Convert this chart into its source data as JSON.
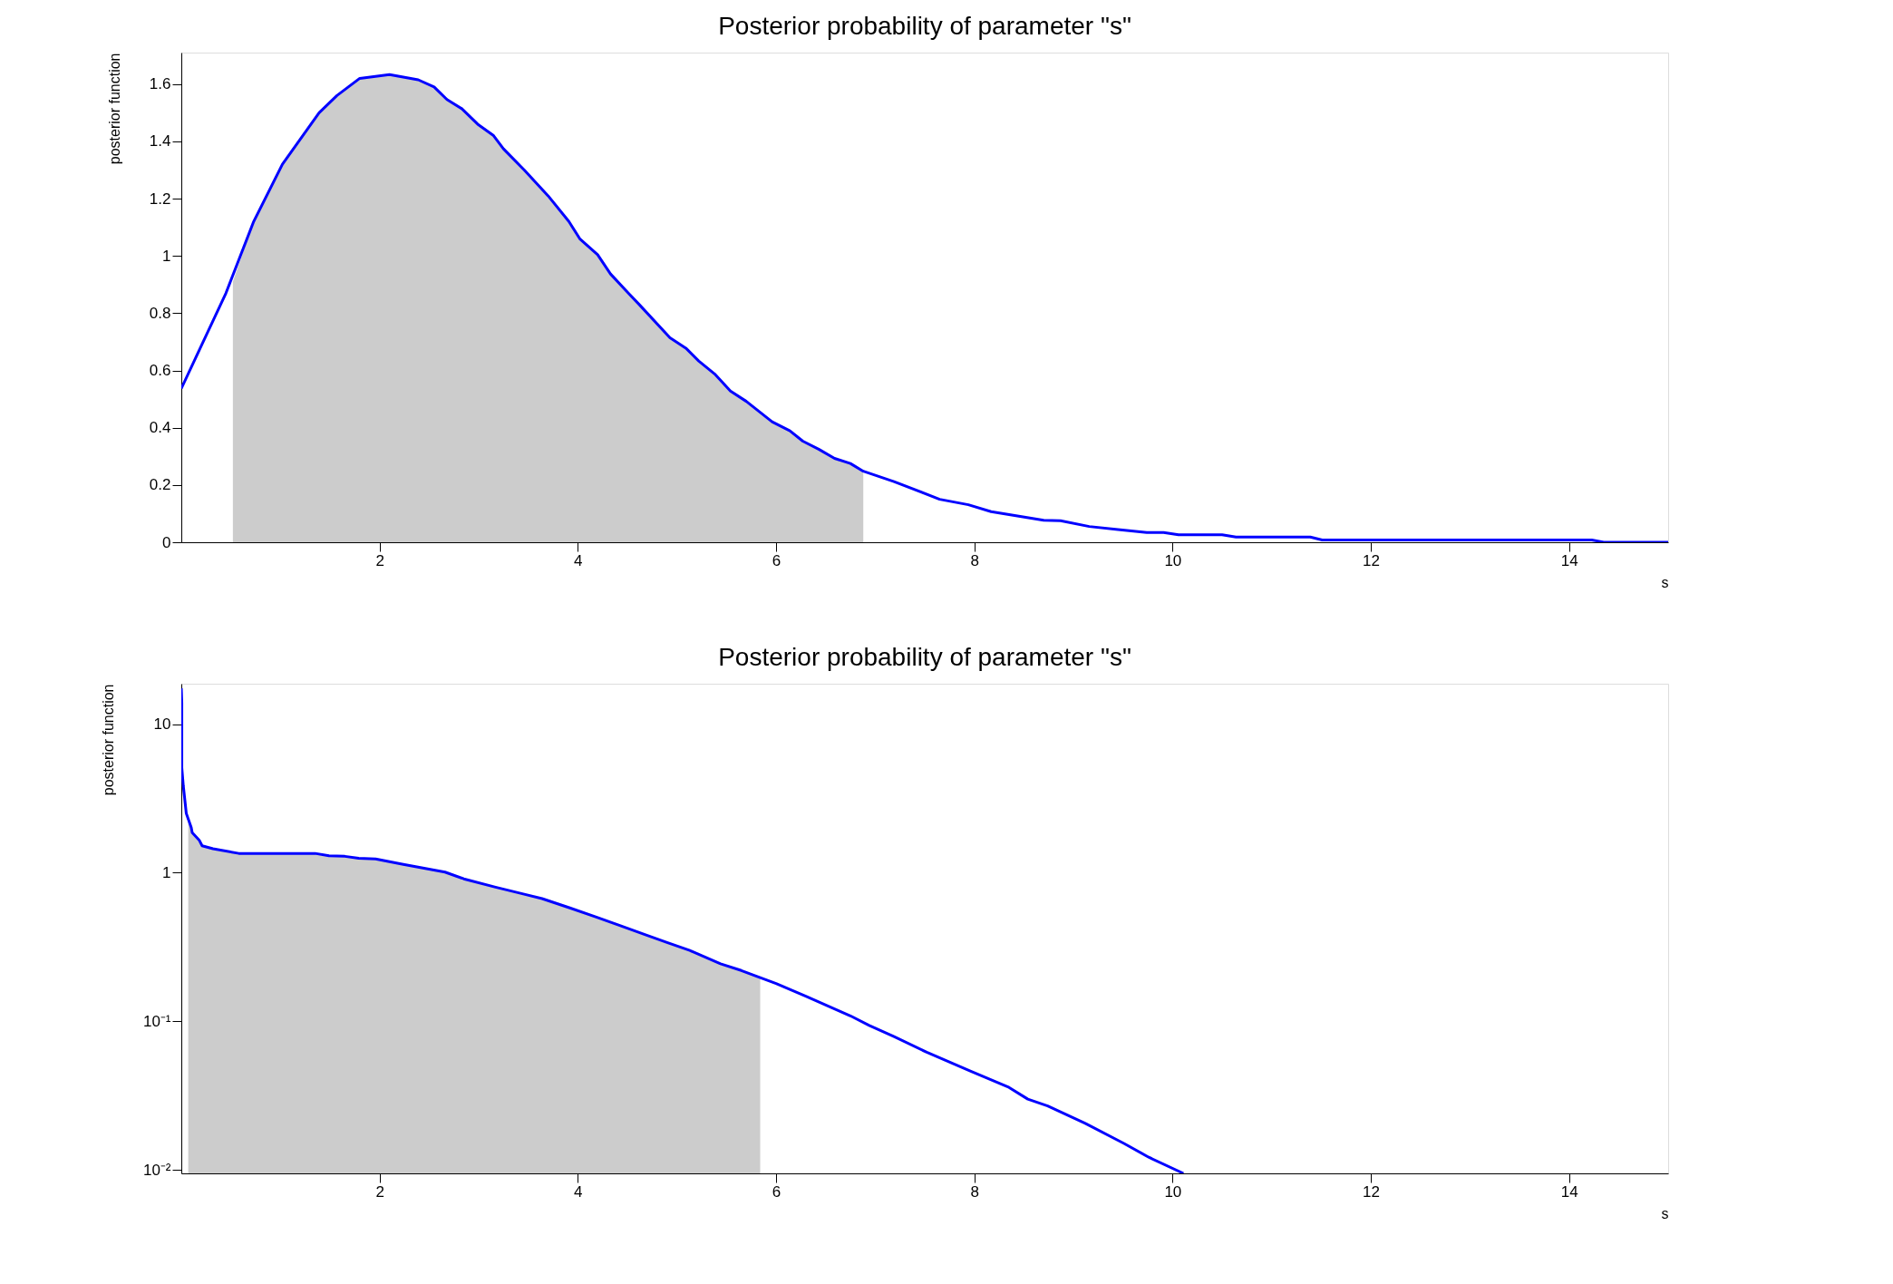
{
  "chart_data": [
    {
      "type": "line",
      "title": "Posterior probability of parameter \"s\"",
      "xlabel": "s",
      "ylabel": "posterior function",
      "xlim": [
        0,
        15
      ],
      "ylim": [
        0,
        1.71
      ],
      "xticks": [
        2,
        4,
        6,
        8,
        10,
        12,
        14
      ],
      "yticks": [
        0,
        0.2,
        0.4,
        0.6,
        0.8,
        1,
        1.2,
        1.4,
        1.6
      ],
      "series": [
        {
          "type": "area",
          "color": "#cccccc",
          "x": [
            0.52,
            0.73,
            1.02,
            1.39,
            1.57,
            1.8,
            2.1,
            2.39,
            2.55,
            2.68,
            2.83,
            2.99,
            3.15,
            3.25,
            3.46,
            3.7,
            3.91,
            4.02,
            4.2,
            4.33,
            4.51,
            4.62,
            4.93,
            5.09,
            5.22,
            5.38,
            5.54,
            5.7,
            5.96,
            6.14,
            6.27,
            6.43,
            6.59,
            6.75,
            6.88
          ],
          "values": [
            0.91,
            1.12,
            1.32,
            1.5,
            1.56,
            1.62,
            1.633,
            1.615,
            1.59,
            1.546,
            1.514,
            1.46,
            1.42,
            1.374,
            1.3,
            1.21,
            1.12,
            1.06,
            1.004,
            0.937,
            0.87,
            0.83,
            0.714,
            0.678,
            0.633,
            0.588,
            0.528,
            0.492,
            0.421,
            0.389,
            0.353,
            0.325,
            0.293,
            0.275,
            0.248
          ]
        },
        {
          "color": "#0000ff",
          "x": [
            0,
            0.18,
            0.45,
            0.73,
            1.02,
            1.39,
            1.57,
            1.8,
            2.1,
            2.39,
            2.55,
            2.68,
            2.83,
            2.99,
            3.15,
            3.25,
            3.46,
            3.7,
            3.91,
            4.02,
            4.2,
            4.33,
            4.51,
            4.62,
            4.93,
            5.09,
            5.22,
            5.38,
            5.54,
            5.7,
            5.96,
            6.14,
            6.27,
            6.43,
            6.59,
            6.75,
            6.88,
            7.19,
            7.65,
            7.94,
            8.17,
            8.7,
            8.87,
            9.16,
            9.45,
            9.74,
            9.91,
            10.06,
            10.5,
            10.64,
            11.39,
            11.51,
            14.23,
            14.35,
            15
          ],
          "values": [
            0.537,
            0.67,
            0.87,
            1.12,
            1.32,
            1.5,
            1.56,
            1.62,
            1.633,
            1.615,
            1.59,
            1.546,
            1.514,
            1.46,
            1.42,
            1.374,
            1.3,
            1.21,
            1.12,
            1.06,
            1.004,
            0.937,
            0.87,
            0.83,
            0.714,
            0.678,
            0.633,
            0.588,
            0.528,
            0.492,
            0.421,
            0.389,
            0.353,
            0.325,
            0.293,
            0.275,
            0.248,
            0.212,
            0.15,
            0.131,
            0.107,
            0.077,
            0.075,
            0.055,
            0.044,
            0.034,
            0.034,
            0.026,
            0.026,
            0.018,
            0.018,
            0.008,
            0.008,
            0,
            0
          ]
        }
      ]
    },
    {
      "type": "line",
      "title": "Posterior probability of parameter \"s\"",
      "xlabel": "s",
      "ylabel": "posterior function",
      "log": true,
      "xlim": [
        0,
        15
      ],
      "ylim": [
        0.0095,
        18.7
      ],
      "xticks": [
        2,
        4,
        6,
        8,
        10,
        12,
        14
      ],
      "yticks": [
        {
          "value": 0.01,
          "label": "10⁻²"
        },
        {
          "value": 0.1,
          "label": "10⁻¹"
        },
        1,
        10
      ],
      "series": [
        {
          "type": "area",
          "color": "#cccccc",
          "x": [
            0.07,
            0.1,
            0.11,
            0.18,
            0.21,
            0.32,
            0.58,
            1.35,
            1.49,
            1.65,
            1.79,
            1.96,
            2.24,
            2.66,
            2.85,
            3.17,
            3.45,
            3.64,
            3.92,
            4.2,
            4.43,
            4.67,
            4.9,
            5.13,
            5.44,
            5.65,
            5.84
          ],
          "values": [
            2.2,
            2.02,
            1.86,
            1.66,
            1.52,
            1.45,
            1.35,
            1.35,
            1.3,
            1.29,
            1.25,
            1.24,
            1.14,
            1.01,
            0.91,
            0.8,
            0.72,
            0.67,
            0.58,
            0.5,
            0.44,
            0.385,
            0.34,
            0.3,
            0.244,
            0.22,
            0.197
          ]
        },
        {
          "color": "#0000ff",
          "x": [
            0,
            0.005,
            0.005,
            0.02,
            0.05,
            0.1,
            0.11,
            0.18,
            0.21,
            0.32,
            0.58,
            1.35,
            1.49,
            1.65,
            1.79,
            1.96,
            2.24,
            2.66,
            2.85,
            3.17,
            3.45,
            3.64,
            3.92,
            4.2,
            4.43,
            4.67,
            4.9,
            5.13,
            5.44,
            5.65,
            5.84,
            6.0,
            6.3,
            6.75,
            6.94,
            7.19,
            7.52,
            7.97,
            8.35,
            8.54,
            8.74,
            9.12,
            9.51,
            9.76,
            10.11
          ],
          "values": [
            17.4,
            13.9,
            5.1,
            3.85,
            2.51,
            2.02,
            1.86,
            1.66,
            1.52,
            1.45,
            1.35,
            1.35,
            1.3,
            1.29,
            1.25,
            1.24,
            1.14,
            1.01,
            0.91,
            0.8,
            0.72,
            0.67,
            0.58,
            0.5,
            0.44,
            0.385,
            0.34,
            0.3,
            0.244,
            0.22,
            0.197,
            0.18,
            0.148,
            0.109,
            0.094,
            0.079,
            0.062,
            0.046,
            0.036,
            0.03,
            0.027,
            0.0206,
            0.0151,
            0.0122,
            0.0095
          ]
        }
      ]
    }
  ]
}
